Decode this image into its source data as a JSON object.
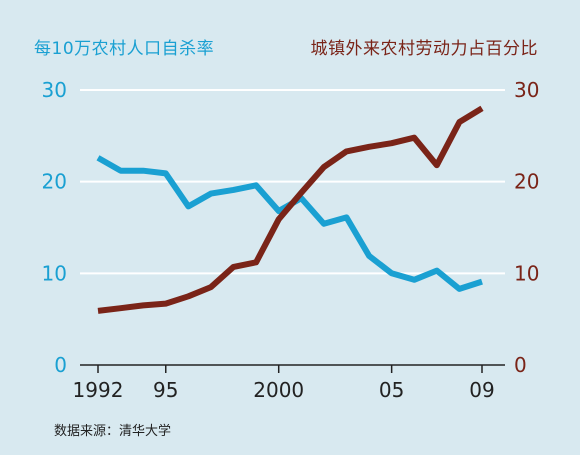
{
  "chart_data": {
    "type": "line",
    "x": [
      1992,
      1993,
      1994,
      1995,
      1996,
      1997,
      1998,
      1999,
      2000,
      2001,
      2002,
      2003,
      2004,
      2005,
      2006,
      2007,
      2008,
      2009
    ],
    "xticks": [
      1992,
      1995,
      2000,
      2005,
      2009
    ],
    "xtick_labels": [
      "1992",
      "95",
      "2000",
      "05",
      "09"
    ],
    "xlim": [
      1992,
      2009
    ],
    "series": [
      {
        "name": "每10万农村人口自杀率",
        "axis": "left",
        "color": "#1aa0d2",
        "values": [
          22.6,
          21.2,
          21.2,
          20.9,
          17.3,
          18.7,
          19.1,
          19.6,
          16.8,
          18.2,
          15.4,
          16.1,
          11.9,
          10.0,
          9.3,
          10.3,
          8.3,
          9.1
        ]
      },
      {
        "name": "城镇外来农村劳动力占百分比",
        "axis": "right",
        "color": "#7a2418",
        "values": [
          5.9,
          6.2,
          6.5,
          6.7,
          7.5,
          8.5,
          10.7,
          11.2,
          15.9,
          18.8,
          21.6,
          23.3,
          23.8,
          24.2,
          24.8,
          21.8,
          26.5,
          28.0
        ]
      }
    ],
    "ylim": [
      0,
      30
    ],
    "yticks": [
      0,
      10,
      20,
      30
    ],
    "grid": true
  },
  "legend": {
    "left": "每10万农村人口自杀率",
    "right": "城镇外来农村劳动力占百分比"
  },
  "source": "数据来源：清华大学"
}
